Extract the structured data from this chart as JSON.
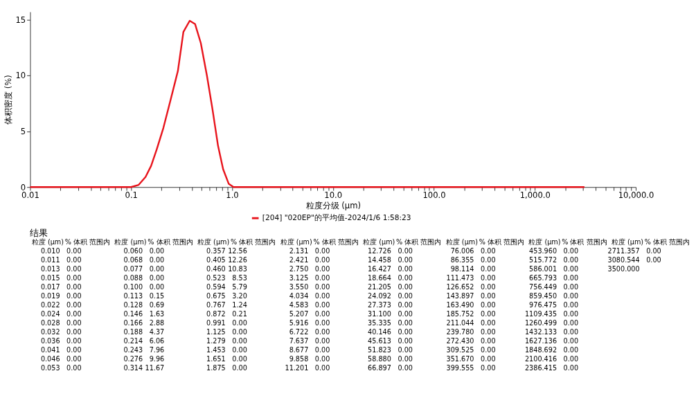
{
  "chart_data": [
    {
      "type": "line",
      "xlabel": "粒度分级 (μm)",
      "ylabel": "体积密度 (%)",
      "log": "x",
      "grid": false,
      "legend": "bottom",
      "marker": "none",
      "line_style": "solid",
      "xlim": [
        0.01,
        10000
      ],
      "ylim": [
        0,
        15.7
      ],
      "yticks": [
        0,
        5,
        10,
        15
      ],
      "xticks": [
        {
          "value": 0.01,
          "label": "0.01"
        },
        {
          "value": 0.02,
          "label": null
        },
        {
          "value": 0.03,
          "label": null
        },
        {
          "value": 0.04,
          "label": null
        },
        {
          "value": 0.05,
          "label": null
        },
        {
          "value": 0.06,
          "label": null
        },
        {
          "value": 0.07,
          "label": null
        },
        {
          "value": 0.08,
          "label": null
        },
        {
          "value": 0.09,
          "label": null
        },
        {
          "value": 0.1,
          "label": "0.1"
        },
        {
          "value": 0.2,
          "label": null
        },
        {
          "value": 0.3,
          "label": null
        },
        {
          "value": 0.4,
          "label": null
        },
        {
          "value": 0.5,
          "label": null
        },
        {
          "value": 0.6,
          "label": null
        },
        {
          "value": 0.7,
          "label": null
        },
        {
          "value": 0.8,
          "label": null
        },
        {
          "value": 0.9,
          "label": null
        },
        {
          "value": 1,
          "label": "1.0"
        },
        {
          "value": 2,
          "label": null
        },
        {
          "value": 3,
          "label": null
        },
        {
          "value": 4,
          "label": null
        },
        {
          "value": 5,
          "label": null
        },
        {
          "value": 6,
          "label": null
        },
        {
          "value": 7,
          "label": null
        },
        {
          "value": 8,
          "label": null
        },
        {
          "value": 9,
          "label": null
        },
        {
          "value": 10,
          "label": "10.0"
        },
        {
          "value": 20,
          "label": null
        },
        {
          "value": 30,
          "label": null
        },
        {
          "value": 40,
          "label": null
        },
        {
          "value": 50,
          "label": null
        },
        {
          "value": 60,
          "label": null
        },
        {
          "value": 70,
          "label": null
        },
        {
          "value": 80,
          "label": null
        },
        {
          "value": 90,
          "label": null
        },
        {
          "value": 100,
          "label": "100.0"
        },
        {
          "value": 200,
          "label": null
        },
        {
          "value": 300,
          "label": null
        },
        {
          "value": 400,
          "label": null
        },
        {
          "value": 500,
          "label": null
        },
        {
          "value": 600,
          "label": null
        },
        {
          "value": 700,
          "label": null
        },
        {
          "value": 800,
          "label": null
        },
        {
          "value": 900,
          "label": null
        },
        {
          "value": 1000,
          "label": "1,000.0"
        },
        {
          "value": 2000,
          "label": null
        },
        {
          "value": 3000,
          "label": null
        },
        {
          "value": 4000,
          "label": null
        },
        {
          "value": 5000,
          "label": null
        },
        {
          "value": 6000,
          "label": null
        },
        {
          "value": 7000,
          "label": null
        },
        {
          "value": 8000,
          "label": null
        },
        {
          "value": 9000,
          "label": null
        },
        {
          "value": 10000,
          "label": "10,000.0"
        }
      ],
      "series": [
        {
          "name": "[204] \"020EP\"的平均值-2024/1/6 1:58:23",
          "color": "#e8141c",
          "x": [
            0.01,
            0.1,
            0.119,
            0.139,
            0.158,
            0.18,
            0.209,
            0.243,
            0.291,
            0.33,
            0.381,
            0.431,
            0.491,
            0.564,
            0.64,
            0.727,
            0.817,
            0.927,
            1.035,
            1.1,
            3100
          ],
          "values": [
            0,
            0,
            0.2,
            0.9,
            1.9,
            3.4,
            5.3,
            7.6,
            10.4,
            13.9,
            14.9,
            14.6,
            12.9,
            10.0,
            7.0,
            3.7,
            1.6,
            0.3,
            0.0,
            0,
            0
          ]
        }
      ]
    },
    {
      "type": "other",
      "title": "结果",
      "xlabel": "粒度 (μm)",
      "ylabel": "% 体积 范围内",
      "categories": [
        "0.010",
        "0.011",
        "0.013",
        "0.015",
        "0.017",
        "0.019",
        "0.022",
        "0.024",
        "0.028",
        "0.032",
        "0.036",
        "0.041",
        "0.046",
        "0.053",
        "0.060",
        "0.068",
        "0.077",
        "0.088",
        "0.100",
        "0.113",
        "0.128",
        "0.146",
        "0.166",
        "0.188",
        "0.214",
        "0.243",
        "0.276",
        "0.314",
        "0.357",
        "0.405",
        "0.460",
        "0.523",
        "0.594",
        "0.675",
        "0.767",
        "0.872",
        "0.991",
        "1.125",
        "1.279",
        "1.453",
        "1.651",
        "1.875",
        "2.131",
        "2.421",
        "2.750",
        "3.125",
        "3.550",
        "4.034",
        "4.583",
        "5.207",
        "5.916",
        "6.722",
        "7.637",
        "8.677",
        "9.858",
        "11.201",
        "12.726",
        "14.458",
        "16.427",
        "18.664",
        "21.205",
        "24.092",
        "27.373",
        "31.100",
        "35.335",
        "40.146",
        "45.613",
        "51.823",
        "58.880",
        "66.897",
        "76.006",
        "86.355",
        "98.114",
        "111.473",
        "126.652",
        "143.897",
        "163.490",
        "185.752",
        "211.044",
        "239.780",
        "272.430",
        "309.525",
        "351.670",
        "399.555",
        "453.960",
        "515.772",
        "586.001",
        "665.793",
        "756.449",
        "859.450",
        "976.475",
        "1109.435",
        "1260.499",
        "1432.133",
        "1627.136",
        "1848.692",
        "2100.416",
        "2386.415",
        "2711.357",
        "3080.544",
        "3500.000"
      ],
      "value_labels": [
        "0.00",
        "0.00",
        "0.00",
        "0.00",
        "0.00",
        "0.00",
        "0.00",
        "0.00",
        "0.00",
        "0.00",
        "0.00",
        "0.00",
        "0.00",
        "0.00",
        "0.00",
        "0.00",
        "0.00",
        "0.00",
        "0.00",
        "0.15",
        "0.69",
        "1.63",
        "2.88",
        "4.37",
        "6.06",
        "7.96",
        "9.96",
        "11.67",
        "12.56",
        "12.26",
        "10.83",
        "8.53",
        "5.79",
        "3.20",
        "1.24",
        "0.21",
        "0.00",
        "0.00",
        "0.00",
        "0.00",
        "0.00",
        "0.00",
        "0.00",
        "0.00",
        "0.00",
        "0.00",
        "0.00",
        "0.00",
        "0.00",
        "0.00",
        "0.00",
        "0.00",
        "0.00",
        "0.00",
        "0.00",
        "0.00",
        "0.00",
        "0.00",
        "0.00",
        "0.00",
        "0.00",
        "0.00",
        "0.00",
        "0.00",
        "0.00",
        "0.00",
        "0.00",
        "0.00",
        "0.00",
        "0.00",
        "0.00",
        "0.00",
        "0.00",
        "0.00",
        "0.00",
        "0.00",
        "0.00",
        "0.00",
        "0.00",
        "0.00",
        "0.00",
        "0.00",
        "0.00",
        "0.00",
        "0.00",
        "0.00",
        "0.00",
        "0.00",
        "0.00",
        "0.00",
        "0.00",
        "0.00",
        "0.00",
        "0.00",
        "0.00",
        "0.00",
        "0.00",
        "0.00",
        "0.00",
        "0.00",
        null
      ],
      "values": [
        0,
        0,
        0,
        0,
        0,
        0,
        0,
        0,
        0,
        0,
        0,
        0,
        0,
        0,
        0,
        0,
        0,
        0,
        0,
        0.15,
        0.69,
        1.63,
        2.88,
        4.37,
        6.06,
        7.96,
        9.96,
        11.67,
        12.56,
        12.26,
        10.83,
        8.53,
        5.79,
        3.2,
        1.24,
        0.21,
        0,
        0,
        0,
        0,
        0,
        0,
        0,
        0,
        0,
        0,
        0,
        0,
        0,
        0,
        0,
        0,
        0,
        0,
        0,
        0,
        0,
        0,
        0,
        0,
        0,
        0,
        0,
        0,
        0,
        0,
        0,
        0,
        0,
        0,
        0,
        0,
        0,
        0,
        0,
        0,
        0,
        0,
        0,
        0,
        0,
        0,
        0,
        0,
        0,
        0,
        0,
        0,
        0,
        0,
        0,
        0,
        0,
        0,
        0,
        0,
        0,
        0,
        0,
        0,
        null
      ]
    }
  ]
}
